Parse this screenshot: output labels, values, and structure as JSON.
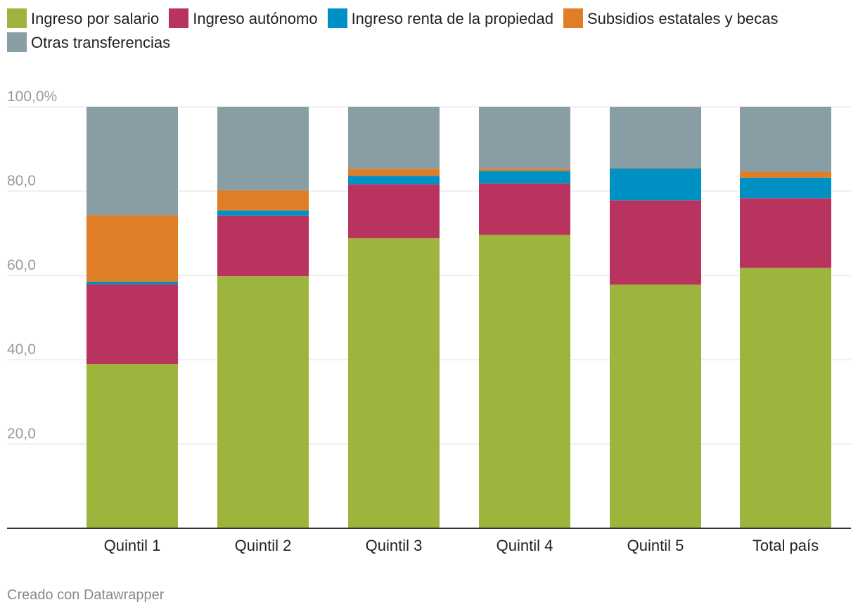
{
  "chart_data": {
    "type": "bar",
    "stacked": true,
    "categories": [
      "Quintil 1",
      "Quintil 2",
      "Quintil 3",
      "Quintil 4",
      "Quintil 5",
      "Total país"
    ],
    "series": [
      {
        "name": "Ingreso por salario",
        "color": "#9db43d",
        "values": [
          39.0,
          59.8,
          68.8,
          69.6,
          57.8,
          61.8
        ]
      },
      {
        "name": "Ingreso autónomo",
        "color": "#b8345e",
        "values": [
          18.9,
          14.4,
          12.8,
          12.2,
          20.0,
          16.5
        ]
      },
      {
        "name": "Ingreso renta de la propiedad",
        "color": "#0091c4",
        "values": [
          0.6,
          1.2,
          2.0,
          3.0,
          7.6,
          4.9
        ]
      },
      {
        "name": "Subsidios estatales y becas",
        "color": "#e07e28",
        "values": [
          15.8,
          4.8,
          1.7,
          0.6,
          0.1,
          1.4
        ]
      },
      {
        "name": "Otras transferencias",
        "color": "#889ea4",
        "values": [
          25.7,
          19.8,
          14.7,
          14.6,
          14.5,
          15.4
        ]
      }
    ],
    "yticks": [
      20,
      40,
      60,
      80,
      100
    ],
    "ytick_labels": [
      "20,0",
      "40,0",
      "60,0",
      "80,0",
      "100,0%"
    ],
    "ylim": [
      0,
      100
    ],
    "title": "",
    "xlabel": "",
    "ylabel": "",
    "legend_position": "top"
  },
  "footer": "Creado con Datawrapper"
}
